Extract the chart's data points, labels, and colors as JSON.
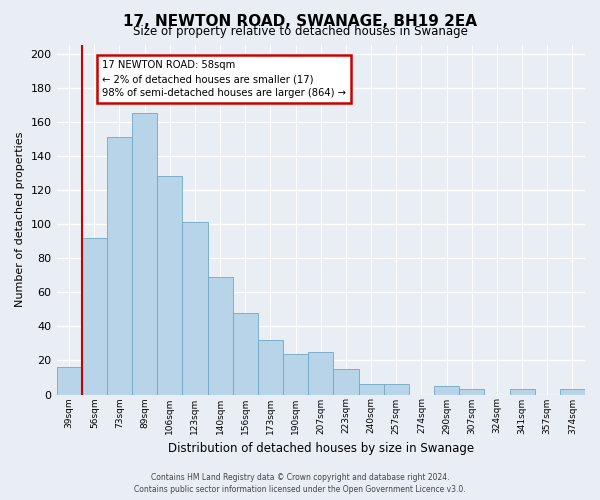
{
  "title": "17, NEWTON ROAD, SWANAGE, BH19 2EA",
  "subtitle": "Size of property relative to detached houses in Swanage",
  "xlabel": "Distribution of detached houses by size in Swanage",
  "ylabel": "Number of detached properties",
  "bar_labels": [
    "39sqm",
    "56sqm",
    "73sqm",
    "89sqm",
    "106sqm",
    "123sqm",
    "140sqm",
    "156sqm",
    "173sqm",
    "190sqm",
    "207sqm",
    "223sqm",
    "240sqm",
    "257sqm",
    "274sqm",
    "290sqm",
    "307sqm",
    "324sqm",
    "341sqm",
    "357sqm",
    "374sqm"
  ],
  "bar_heights": [
    16,
    92,
    151,
    165,
    128,
    101,
    69,
    48,
    32,
    24,
    25,
    15,
    6,
    6,
    0,
    5,
    3,
    0,
    3,
    0,
    3
  ],
  "bar_color": "#b8d4e8",
  "bar_edge_color": "#6fa8c8",
  "highlight_bar_index": 1,
  "highlight_line_color": "#cc0000",
  "ylim": [
    0,
    205
  ],
  "yticks": [
    0,
    20,
    40,
    60,
    80,
    100,
    120,
    140,
    160,
    180,
    200
  ],
  "annotation_title": "17 NEWTON ROAD: 58sqm",
  "annotation_line1": "← 2% of detached houses are smaller (17)",
  "annotation_line2": "98% of semi-detached houses are larger (864) →",
  "annotation_box_color": "#ffffff",
  "annotation_box_edge": "#cc0000",
  "footer_line1": "Contains HM Land Registry data © Crown copyright and database right 2024.",
  "footer_line2": "Contains public sector information licensed under the Open Government Licence v3.0.",
  "bg_color": "#e8eef4",
  "grid_color": "#d0d8e4"
}
